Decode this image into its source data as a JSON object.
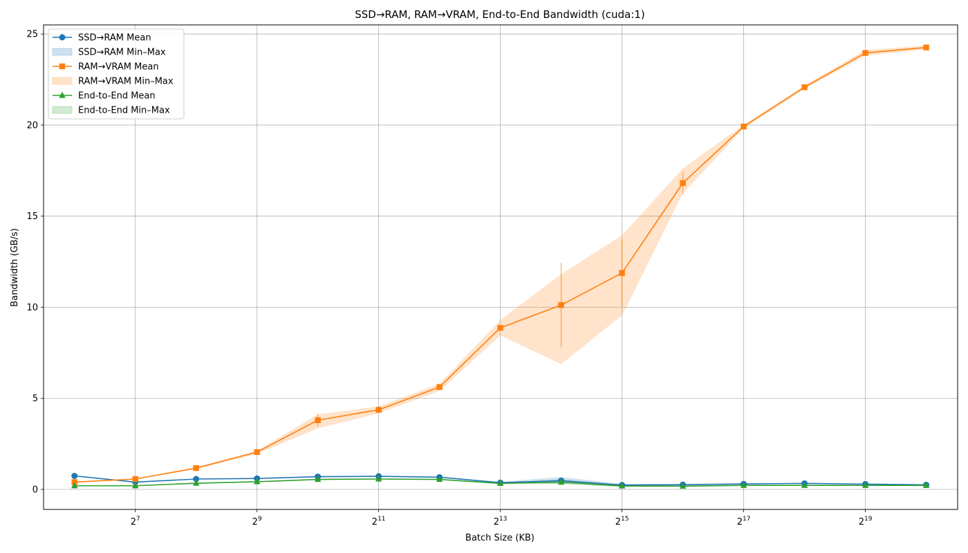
{
  "chart_data": {
    "type": "line",
    "title": "SSD→RAM, RAM→VRAM, End-to-End Bandwidth (cuda:1)",
    "xlabel": "Batch Size (KB)",
    "ylabel": "Bandwidth (GB/s)",
    "x_scale": "log2",
    "x": [
      64,
      128,
      256,
      512,
      1024,
      2048,
      4096,
      8192,
      16384,
      32768,
      65536,
      131072,
      262144,
      524288,
      1048576
    ],
    "xlim": [
      45,
      1500000
    ],
    "ylim": [
      -1.1,
      25.5
    ],
    "x_ticks": [
      {
        "value": 128,
        "base": "2",
        "exp": "7"
      },
      {
        "value": 512,
        "base": "2",
        "exp": "9"
      },
      {
        "value": 2048,
        "base": "2",
        "exp": "11"
      },
      {
        "value": 8192,
        "base": "2",
        "exp": "13"
      },
      {
        "value": 32768,
        "base": "2",
        "exp": "15"
      },
      {
        "value": 131072,
        "base": "2",
        "exp": "17"
      },
      {
        "value": 524288,
        "base": "2",
        "exp": "19"
      }
    ],
    "y_ticks": [
      {
        "value": 0,
        "label": "0"
      },
      {
        "value": 5,
        "label": "5"
      },
      {
        "value": 10,
        "label": "10"
      },
      {
        "value": 15,
        "label": "15"
      },
      {
        "value": 20,
        "label": "20"
      },
      {
        "value": 25,
        "label": "25"
      }
    ],
    "grid": true,
    "legend_position": "top-left",
    "series": [
      {
        "name": "SSD→RAM Mean",
        "band_name": "SSD→RAM Min–Max",
        "color": "#1f77b4",
        "marker": "circle",
        "values": [
          0.74,
          0.4,
          0.57,
          0.6,
          0.7,
          0.72,
          0.67,
          0.37,
          0.48,
          0.24,
          0.26,
          0.3,
          0.33,
          0.29,
          0.25
        ],
        "min": [
          0.72,
          0.38,
          0.55,
          0.58,
          0.67,
          0.69,
          0.64,
          0.33,
          0.32,
          0.17,
          0.22,
          0.27,
          0.3,
          0.26,
          0.22
        ],
        "max": [
          0.76,
          0.42,
          0.59,
          0.62,
          0.73,
          0.75,
          0.7,
          0.42,
          0.68,
          0.3,
          0.29,
          0.33,
          0.36,
          0.32,
          0.28
        ]
      },
      {
        "name": "RAM→VRAM Mean",
        "band_name": "RAM→VRAM Min–Max",
        "color": "#ff7f0e",
        "marker": "square",
        "values": [
          0.4,
          0.57,
          1.17,
          2.05,
          3.8,
          4.37,
          5.62,
          8.87,
          10.12,
          11.88,
          16.82,
          19.92,
          22.08,
          23.96,
          24.26
        ],
        "min": [
          0.37,
          0.54,
          1.12,
          1.95,
          3.35,
          4.18,
          5.4,
          8.45,
          6.88,
          9.55,
          16.25,
          19.82,
          21.98,
          23.8,
          24.15
        ],
        "max": [
          0.43,
          0.6,
          1.22,
          2.12,
          4.12,
          4.55,
          5.8,
          9.3,
          11.82,
          13.95,
          17.62,
          20.02,
          22.18,
          24.12,
          24.36
        ],
        "std": [
          0.01,
          0.01,
          0.02,
          0.03,
          0.35,
          0.08,
          0.06,
          0.15,
          2.32,
          1.82,
          0.62,
          0.02,
          0.02,
          0.05,
          0.02
        ]
      },
      {
        "name": "End-to-End Mean",
        "band_name": "End-to-End Min–Max",
        "color": "#2ca02c",
        "marker": "triangle",
        "values": [
          0.2,
          0.2,
          0.34,
          0.42,
          0.55,
          0.57,
          0.55,
          0.33,
          0.4,
          0.19,
          0.18,
          0.22,
          0.22,
          0.22,
          0.22
        ],
        "min": [
          0.19,
          0.19,
          0.32,
          0.4,
          0.53,
          0.55,
          0.53,
          0.3,
          0.3,
          0.12,
          0.15,
          0.2,
          0.2,
          0.2,
          0.2
        ],
        "max": [
          0.21,
          0.21,
          0.36,
          0.44,
          0.57,
          0.59,
          0.57,
          0.36,
          0.55,
          0.25,
          0.21,
          0.24,
          0.24,
          0.24,
          0.24
        ]
      }
    ]
  }
}
